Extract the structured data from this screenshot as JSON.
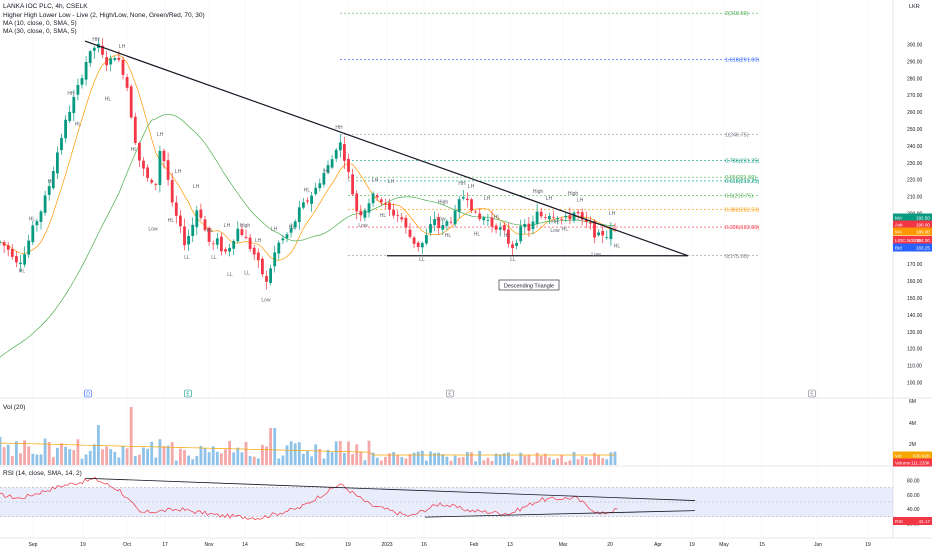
{
  "header": {
    "title": "LANKA IOC PLC, 4h, CSELK",
    "indicators": [
      "Higher High Lower Low - Live (2, High/Low, None, Green/Red, 70, 30)",
      "MA (10, close, 0, SMA, 5)",
      "MA (30, close, 0, SMA, 5)"
    ]
  },
  "currency": "LKR",
  "price_axis": [
    "300.00",
    "290.00",
    "280.00",
    "270.00",
    "260.00",
    "250.00",
    "240.00",
    "230.00",
    "220.00",
    "210.00",
    "200.00",
    "190.00",
    "180.00",
    "170.00",
    "160.00",
    "150.00",
    "140.00",
    "130.00",
    "120.00",
    "110.00",
    "100.00"
  ],
  "time_axis": [
    "Sep",
    "19",
    "Oct",
    "17",
    "Nov",
    "14",
    "Dec",
    "19",
    "2023",
    "16",
    "Feb",
    "13",
    "Mar",
    "20",
    "Apr",
    "19",
    "May",
    "15",
    "Jun",
    "19"
  ],
  "fib_levels": [
    {
      "label": "2(318.50)",
      "price": 318.5,
      "color": "#4caf50"
    },
    {
      "label": "1.618(291.00)",
      "price": 291.0,
      "color": "#2962ff"
    },
    {
      "label": "1(246.75)",
      "price": 246.75,
      "color": "#787b86"
    },
    {
      "label": "0.786(231.25)",
      "price": 231.25,
      "color": "#089981"
    },
    {
      "label": "0.65(221.50)",
      "price": 221.5,
      "color": "#4caf50"
    },
    {
      "label": "0.618(219.25)",
      "price": 219.25,
      "color": "#089981"
    },
    {
      "label": "0.5(210.75)",
      "price": 210.75,
      "color": "#4caf50"
    },
    {
      "label": "0.382(202.50)",
      "price": 202.5,
      "color": "#ff9800"
    },
    {
      "label": "0.236(192.00)",
      "price": 192.0,
      "color": "#f23645"
    },
    {
      "label": "0(175.00)",
      "price": 175.0,
      "color": "#787b86"
    }
  ],
  "price_tags": [
    {
      "key": "MA",
      "value": "192.50",
      "color": "#089981"
    },
    {
      "key": "Ask",
      "value": "190.00",
      "color": "#f23645"
    },
    {
      "key": "MA",
      "value": "189.00",
      "color": "#ff9800"
    },
    {
      "key": "LIOC.N0000",
      "value": "184.00",
      "color": "#f23645"
    },
    {
      "key": "Bid",
      "value": "183.25",
      "color": "#2962ff"
    }
  ],
  "pattern_label": "Descending Triangle",
  "hhll_labels": [
    {
      "t": "HL",
      "x": 22,
      "p": 165
    },
    {
      "t": "HH",
      "x": 96,
      "p": 302
    },
    {
      "t": "LH",
      "x": 122,
      "p": 298
    },
    {
      "t": "HH",
      "x": 71,
      "p": 270
    },
    {
      "t": "HL",
      "x": 108,
      "p": 267
    },
    {
      "t": "HL",
      "x": 78,
      "p": 252
    },
    {
      "t": "HL",
      "x": 51,
      "p": 218
    },
    {
      "t": "HL",
      "x": 32,
      "p": 196
    },
    {
      "t": "LH",
      "x": 160,
      "p": 246
    },
    {
      "t": "HL",
      "x": 134,
      "p": 237
    },
    {
      "t": "LH",
      "x": 178,
      "p": 224
    },
    {
      "t": "LH",
      "x": 196,
      "p": 215
    },
    {
      "t": "Low",
      "x": 153,
      "p": 190
    },
    {
      "t": "HL",
      "x": 171,
      "p": 195
    },
    {
      "t": "HL",
      "x": 210,
      "p": 189
    },
    {
      "t": "LL",
      "x": 187,
      "p": 173
    },
    {
      "t": "LH",
      "x": 227,
      "p": 192
    },
    {
      "t": "High",
      "x": 245,
      "p": 192
    },
    {
      "t": "LL",
      "x": 214,
      "p": 173
    },
    {
      "t": "LL",
      "x": 230,
      "p": 163
    },
    {
      "t": "LL",
      "x": 247,
      "p": 164
    },
    {
      "t": "LH",
      "x": 258,
      "p": 183
    },
    {
      "t": "LH",
      "x": 274,
      "p": 190
    },
    {
      "t": "Low",
      "x": 266,
      "p": 148
    },
    {
      "t": "HH",
      "x": 339,
      "p": 250
    },
    {
      "t": "HL",
      "x": 327,
      "p": 224
    },
    {
      "t": "HL",
      "x": 307,
      "p": 213
    },
    {
      "t": "HL",
      "x": 292,
      "p": 191
    },
    {
      "t": "Low",
      "x": 363,
      "p": 192
    },
    {
      "t": "HL",
      "x": 383,
      "p": 198
    },
    {
      "t": "LH",
      "x": 375,
      "p": 219
    },
    {
      "t": "LH",
      "x": 391,
      "p": 218
    },
    {
      "t": "High",
      "x": 443,
      "p": 206
    },
    {
      "t": "HH",
      "x": 462,
      "p": 217
    },
    {
      "t": "LH",
      "x": 471,
      "p": 215
    },
    {
      "t": "LH",
      "x": 487,
      "p": 208
    },
    {
      "t": "Low",
      "x": 441,
      "p": 196
    },
    {
      "t": "HL",
      "x": 448,
      "p": 186
    },
    {
      "t": "LL",
      "x": 422,
      "p": 172
    },
    {
      "t": "HL",
      "x": 477,
      "p": 187
    },
    {
      "t": "HL",
      "x": 497,
      "p": 197
    },
    {
      "t": "HL",
      "x": 507,
      "p": 186
    },
    {
      "t": "LL",
      "x": 513,
      "p": 172
    },
    {
      "t": "High",
      "x": 538,
      "p": 212
    },
    {
      "t": "LH",
      "x": 549,
      "p": 208
    },
    {
      "t": "High",
      "x": 573,
      "p": 211
    },
    {
      "t": "LH",
      "x": 580,
      "p": 207
    },
    {
      "t": "HH",
      "x": 555,
      "p": 194
    },
    {
      "t": "Low",
      "x": 555,
      "p": 189
    },
    {
      "t": "HL",
      "x": 565,
      "p": 190
    },
    {
      "t": "LH",
      "x": 612,
      "p": 199
    },
    {
      "t": "HL",
      "x": 617,
      "p": 180
    },
    {
      "t": "Low",
      "x": 596,
      "p": 175
    }
  ],
  "volume_panel": {
    "label": "Vol (20)",
    "axis": [
      "6M",
      "4M",
      "2M"
    ],
    "tags": [
      {
        "key": "Vol",
        "value": "630.02K",
        "color": "#f7a600"
      },
      {
        "key": "Volume",
        "value": "111.233K",
        "color": "#f23645"
      }
    ]
  },
  "rsi_panel": {
    "label": "RSI (14, close, SMA, 14, 2)",
    "axis": [
      "80.00",
      "60.00",
      "40.00",
      "20.00"
    ],
    "tags": [
      {
        "key": "RSI",
        "value": "41.17",
        "color": "#f23645"
      }
    ]
  },
  "event_markers": [
    {
      "t": "D",
      "x": 88,
      "kind": "dividend"
    },
    {
      "t": "E",
      "x": 188,
      "kind": "earnings"
    },
    {
      "t": "E",
      "x": 450,
      "kind": "earnings"
    },
    {
      "t": "E",
      "x": 812,
      "kind": "earnings"
    }
  ],
  "chart_data": {
    "type": "candlestick",
    "title": "LANKA IOC PLC, 4h, CSELK",
    "y_unit": "LKR",
    "ylim": [
      93,
      327
    ],
    "trendline_descending": {
      "from": {
        "x": 0.0,
        "price": 302
      },
      "to": {
        "x": 1.0,
        "price": 175
      }
    },
    "support_line": 175,
    "moving_averages": [
      {
        "name": "MA (10, close, 0, SMA, 5)",
        "color": "#ff9800"
      },
      {
        "name": "MA (30, close, 0, SMA, 5)",
        "color": "#4caf50"
      }
    ],
    "rsi_upper": 70,
    "rsi_lower": 30
  }
}
